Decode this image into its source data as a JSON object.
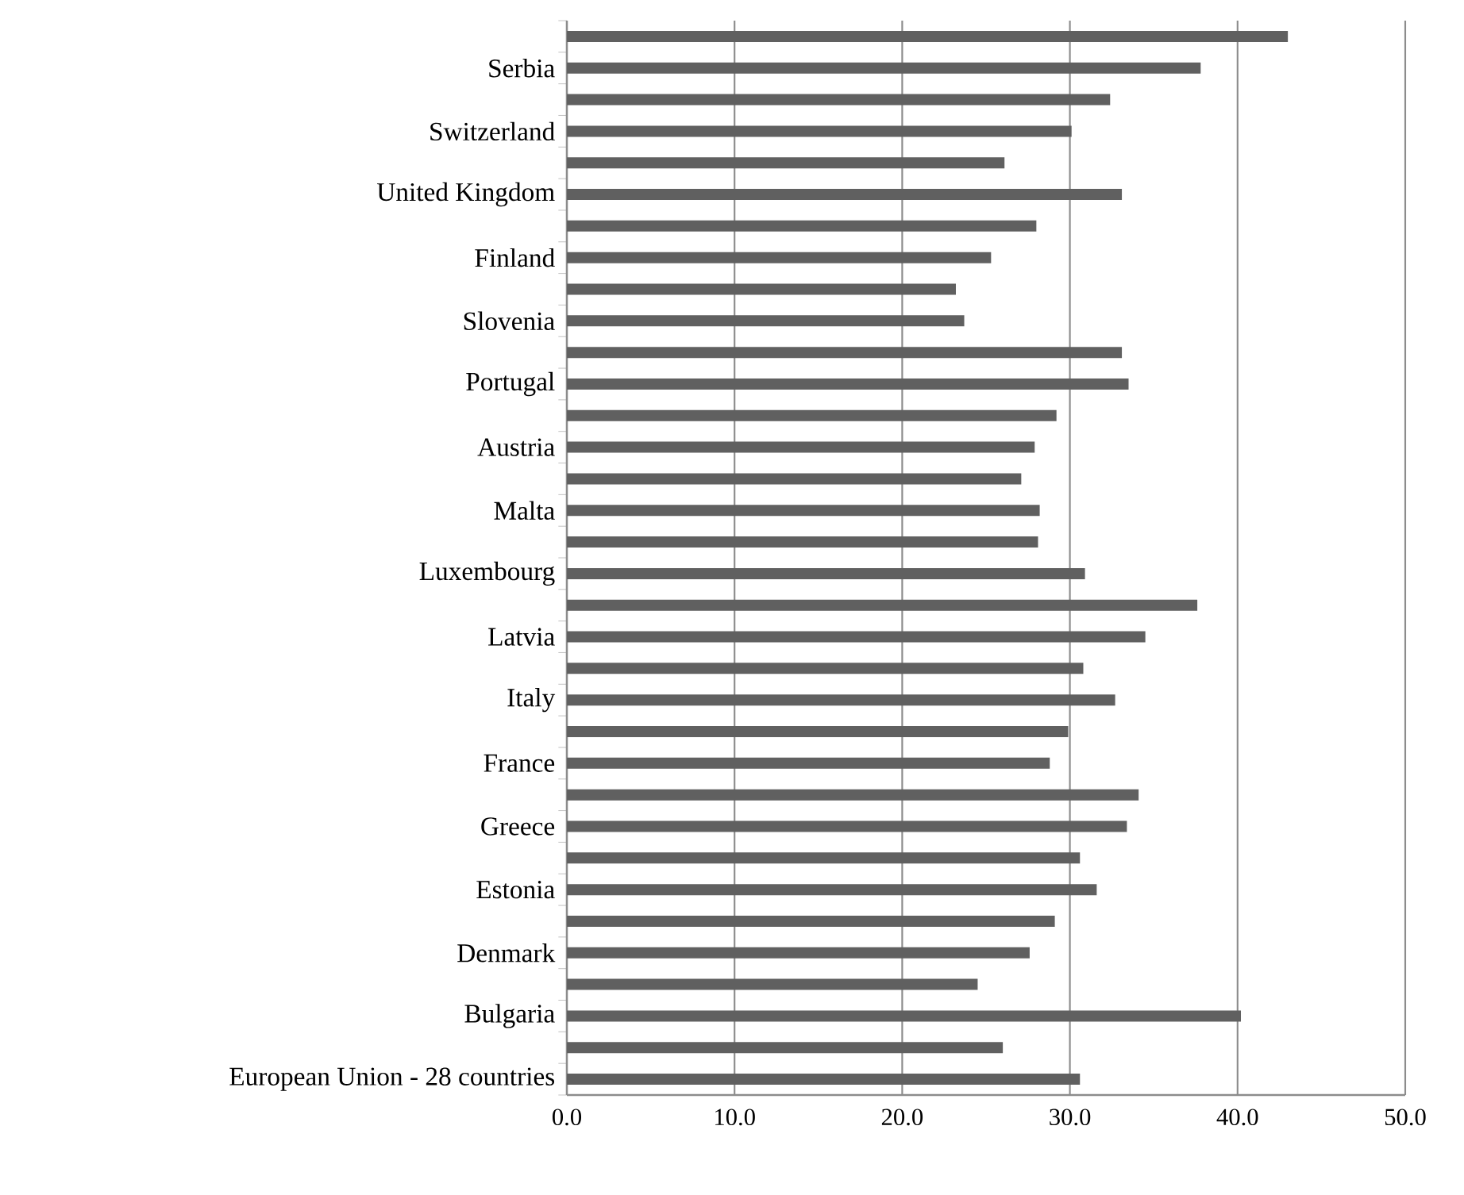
{
  "chart_data": {
    "type": "bar",
    "orientation": "horizontal",
    "categories": [
      null,
      "Serbia",
      null,
      "Switzerland",
      null,
      "United Kingdom",
      null,
      "Finland",
      null,
      "Slovenia",
      null,
      "Portugal",
      null,
      "Austria",
      null,
      "Malta",
      null,
      "Luxembourg",
      null,
      "Latvia",
      null,
      "Italy",
      null,
      "France",
      null,
      "Greece",
      null,
      "Estonia",
      null,
      "Denmark",
      null,
      "Bulgaria",
      null,
      "European Union - 28 countries"
    ],
    "values": [
      43.0,
      37.8,
      32.4,
      30.1,
      26.1,
      33.1,
      28.0,
      25.3,
      23.2,
      23.7,
      33.1,
      33.5,
      29.2,
      27.9,
      27.1,
      28.2,
      28.1,
      30.9,
      37.6,
      34.5,
      30.8,
      32.7,
      29.9,
      28.8,
      34.1,
      33.4,
      30.6,
      31.6,
      29.1,
      27.6,
      24.5,
      40.2,
      26.0,
      30.6
    ],
    "color": "#606060",
    "xlim": [
      0,
      50
    ],
    "xticks": [
      {
        "value": 0,
        "label": "0.0"
      },
      {
        "value": 10,
        "label": "10.0"
      },
      {
        "value": 20,
        "label": "20.0"
      },
      {
        "value": 30,
        "label": "30.0"
      },
      {
        "value": 40,
        "label": "40.0"
      },
      {
        "value": 50,
        "label": "50.0"
      }
    ],
    "grid": "x"
  }
}
